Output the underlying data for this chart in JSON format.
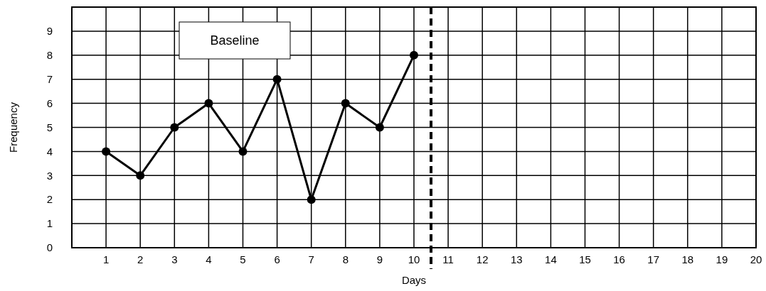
{
  "chart_data": {
    "type": "line",
    "xlabel": "Days",
    "ylabel": "Frequency",
    "x": [
      1,
      2,
      3,
      4,
      5,
      6,
      7,
      8,
      9,
      10
    ],
    "series": [
      {
        "color": "#000000",
        "values": [
          4,
          3,
          5,
          6,
          4,
          7,
          2,
          6,
          5,
          8
        ]
      }
    ],
    "xlim": [
      0,
      20
    ],
    "xticks": [
      1,
      2,
      3,
      4,
      5,
      6,
      7,
      8,
      9,
      10,
      11,
      12,
      13,
      14,
      15,
      16,
      17,
      18,
      19,
      20
    ],
    "ylim": [
      0,
      10
    ],
    "yticks": [
      0,
      1,
      2,
      3,
      4,
      5,
      6,
      7,
      8,
      9
    ],
    "grid": true,
    "marker": "circle",
    "line_style": "solid",
    "ref_lines": [
      {
        "axis": "x",
        "value": 10.5,
        "color": "#000000",
        "line_style": "dashed"
      }
    ],
    "annotations": [
      "Baseline"
    ]
  }
}
